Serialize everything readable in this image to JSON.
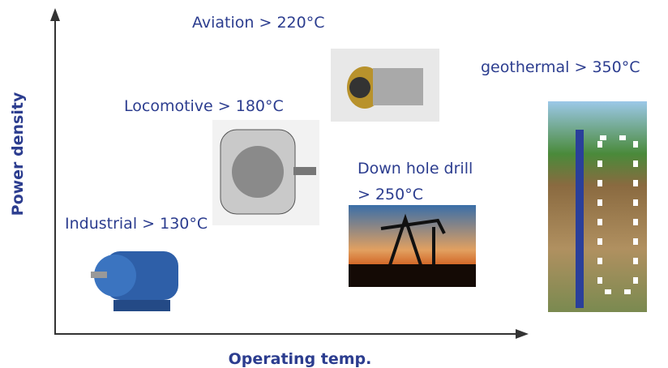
{
  "axes": {
    "y_label": "Power density",
    "x_label": "Operating temp."
  },
  "items": [
    {
      "label": "Aviation > 220°C"
    },
    {
      "label": "geothermal > 350°C"
    },
    {
      "label": "Locomotive > 180°C"
    },
    {
      "label_lines": [
        "Down hole drill",
        "> 250°C"
      ]
    },
    {
      "label": "Industrial > 130°C"
    }
  ]
}
